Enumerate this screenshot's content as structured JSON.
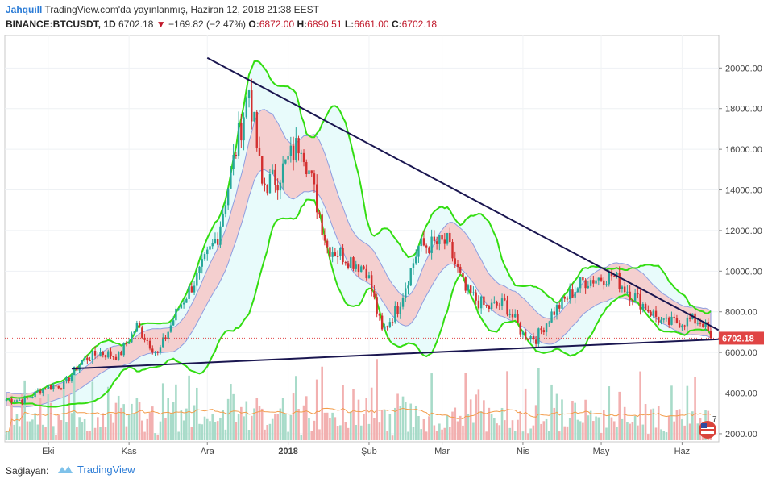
{
  "header": {
    "author": "Jahquill",
    "published": "TradingView.com'da yayınlanmış, Haziran 12, 2018 21:38 EEST",
    "symbol": "BINANCE:BTCUSDT, 1D",
    "last": "6702.18",
    "change": "−169.82 (−2.47%)",
    "open_label": "O:",
    "open": "6872.00",
    "high_label": "H:",
    "high": "6890.51",
    "low_label": "L:",
    "low": "6661.00",
    "close_label": "C:",
    "close": "6702.18"
  },
  "footer": {
    "provider_label": "Sağlayan:",
    "brand": "TradingView"
  },
  "colors": {
    "up": "#26a69a",
    "down": "#d32f2f",
    "bollinger": "#33dd11",
    "envelope_fill": "#f4cfcf",
    "trendline": "#1a1650",
    "volume_up": "#a8dbc9",
    "volume_down": "#f2b0b0",
    "volume_ma": "#f39c4a",
    "price_label_bg": "#e04444"
  },
  "chart_data": {
    "type": "candlestick",
    "title": "BINANCE:BTCUSDT, 1D",
    "ylim": [
      1600,
      21600
    ],
    "y_ticks": [
      2000,
      4000,
      6000,
      8000,
      10000,
      12000,
      14000,
      16000,
      18000,
      20000
    ],
    "y_tick_labels": [
      "2000.00",
      "4000.00",
      "6000.00",
      "8000.00",
      "10000.00",
      "12000.00",
      "14000.00",
      "16000.00",
      "18000.00",
      "20000.00"
    ],
    "x_labels": [
      "Eki",
      "Kas",
      "Ara",
      "2018",
      "Şub",
      "Mar",
      "Nis",
      "May",
      "Haz"
    ],
    "x_start": "2017-09-15",
    "x_end": "2018-06-12",
    "last_price": 6702.18,
    "last_price_label": "6702.18",
    "badge_label": "7",
    "close_path": [
      [
        "2017-09-15",
        3700
      ],
      [
        "2017-09-22",
        3650
      ],
      [
        "2017-09-30",
        4300
      ],
      [
        "2017-10-07",
        4400
      ],
      [
        "2017-10-14",
        5600
      ],
      [
        "2017-10-21",
        6000
      ],
      [
        "2017-10-28",
        5800
      ],
      [
        "2017-11-04",
        7300
      ],
      [
        "2017-11-12",
        5900
      ],
      [
        "2017-11-20",
        8200
      ],
      [
        "2017-11-28",
        9900
      ],
      [
        "2017-12-05",
        11800
      ],
      [
        "2017-12-10",
        14800
      ],
      [
        "2017-12-17",
        19000
      ],
      [
        "2017-12-22",
        14200
      ],
      [
        "2017-12-28",
        14600
      ],
      [
        "2018-01-06",
        16500
      ],
      [
        "2018-01-16",
        11200
      ],
      [
        "2018-01-22",
        10800
      ],
      [
        "2018-01-31",
        10100
      ],
      [
        "2018-02-06",
        7000
      ],
      [
        "2018-02-12",
        8200
      ],
      [
        "2018-02-20",
        11200
      ],
      [
        "2018-03-03",
        11400
      ],
      [
        "2018-03-10",
        9000
      ],
      [
        "2018-03-18",
        8200
      ],
      [
        "2018-03-25",
        8400
      ],
      [
        "2018-04-01",
        6900
      ],
      [
        "2018-04-06",
        6700
      ],
      [
        "2018-04-12",
        7900
      ],
      [
        "2018-04-24",
        9500
      ],
      [
        "2018-05-05",
        9800
      ],
      [
        "2018-05-15",
        8600
      ],
      [
        "2018-05-25",
        7400
      ],
      [
        "2018-06-05",
        7600
      ],
      [
        "2018-06-09",
        7500
      ],
      [
        "2018-06-12",
        6702
      ]
    ],
    "volume_scale": [
      0,
      2200
    ],
    "trendlines": [
      {
        "name": "upper",
        "points": [
          [
            "2017-12-01",
            20500
          ],
          [
            "2018-06-15",
            7100
          ]
        ]
      },
      {
        "name": "lower",
        "points": [
          [
            "2017-10-10",
            5200
          ],
          [
            "2018-06-15",
            6650
          ]
        ]
      }
    ]
  }
}
